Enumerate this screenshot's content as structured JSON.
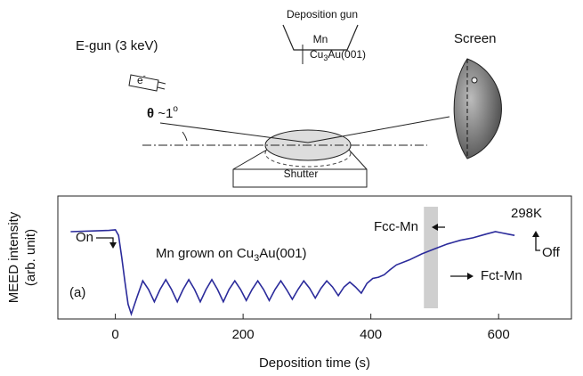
{
  "diagram": {
    "deposition_gun": "Deposition gun",
    "source": "Mn",
    "egun": "E-gun (3 keV)",
    "electron": [
      "e",
      "-"
    ],
    "sample": [
      "Cu",
      "3",
      "Au(001)"
    ],
    "shutter": "Shutter",
    "screen": "Screen",
    "angle": [
      "θ",
      " ~1",
      "o"
    ]
  },
  "chart_data": {
    "type": "line",
    "xlabel": "Deposition time (s)",
    "ylabel": [
      "MEED intensity",
      "(arb. unit)"
    ],
    "xlim": [
      -90,
      714
    ],
    "ylim": [
      0,
      100
    ],
    "xticks": [
      0,
      200,
      400,
      600
    ],
    "shaded_region": [
      483,
      505
    ],
    "annotations": [
      {
        "text": "On"
      },
      {
        "text_parts": [
          "Mn grown  on Cu",
          "3",
          "Au(001)"
        ]
      },
      {
        "text": "(a)"
      },
      {
        "text": "Fcc-Mn"
      },
      {
        "text": "Fct-Mn"
      },
      {
        "text": "298K"
      },
      {
        "text": "Off"
      }
    ],
    "series": [
      {
        "color": "#2b2b9b",
        "x": [
          -70,
          -40,
          -10,
          0,
          5,
          10,
          15,
          20,
          25,
          34,
          43,
          52,
          61,
          70,
          79,
          88,
          97,
          106,
          115,
          124,
          133,
          142,
          151,
          160,
          169,
          178,
          187,
          196,
          205,
          214,
          223,
          232,
          241,
          250,
          259,
          268,
          277,
          286,
          295,
          304,
          313,
          322,
          331,
          340,
          349,
          358,
          367,
          376,
          385,
          394,
          403,
          412,
          421,
          430,
          440,
          460,
          480,
          500,
          520,
          540,
          560,
          580,
          595,
          605,
          615,
          625
        ],
        "values": [
          71,
          71.5,
          72,
          72.5,
          68,
          50,
          30,
          12,
          4,
          18,
          31,
          24,
          14,
          24,
          32,
          24,
          14,
          24,
          32,
          24,
          14,
          24,
          32,
          24,
          14,
          24,
          31,
          24,
          15,
          24,
          31,
          24,
          15,
          24,
          31,
          24,
          16,
          24,
          31,
          25,
          17,
          25,
          31,
          26,
          19,
          26,
          30,
          26,
          21,
          29,
          33,
          34,
          36,
          40,
          44,
          48,
          53,
          57,
          61,
          64,
          66,
          69,
          71,
          70,
          69,
          68
        ]
      }
    ]
  }
}
